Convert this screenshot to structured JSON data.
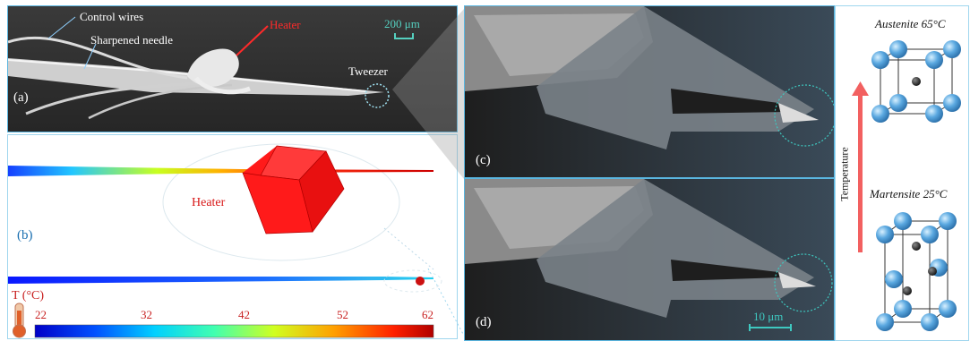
{
  "panel_a": {
    "label": "(a)",
    "control_wires": "Control wires",
    "sharpened_needle": "Sharpened needle",
    "heater": "Heater",
    "tweezer": "Tweezer",
    "scale": "200 μm"
  },
  "panel_b": {
    "label": "(b)",
    "heater": "Heater",
    "legend_title": "T (°C)",
    "ticks": [
      "22",
      "32",
      "42",
      "52",
      "62"
    ]
  },
  "panel_c": {
    "label": "(c)"
  },
  "panel_d": {
    "label": "(d)",
    "scale": "10 μm"
  },
  "crystal": {
    "austenite": "Austenite 65°C",
    "martensite": "Martensite 25°C",
    "axis": "Temperature"
  },
  "colors": {
    "accent": "#2aa6d8",
    "heater_red": "#ff1a1a",
    "atom_blue": "#5aa8e0",
    "arrow_red": "#f26060"
  }
}
